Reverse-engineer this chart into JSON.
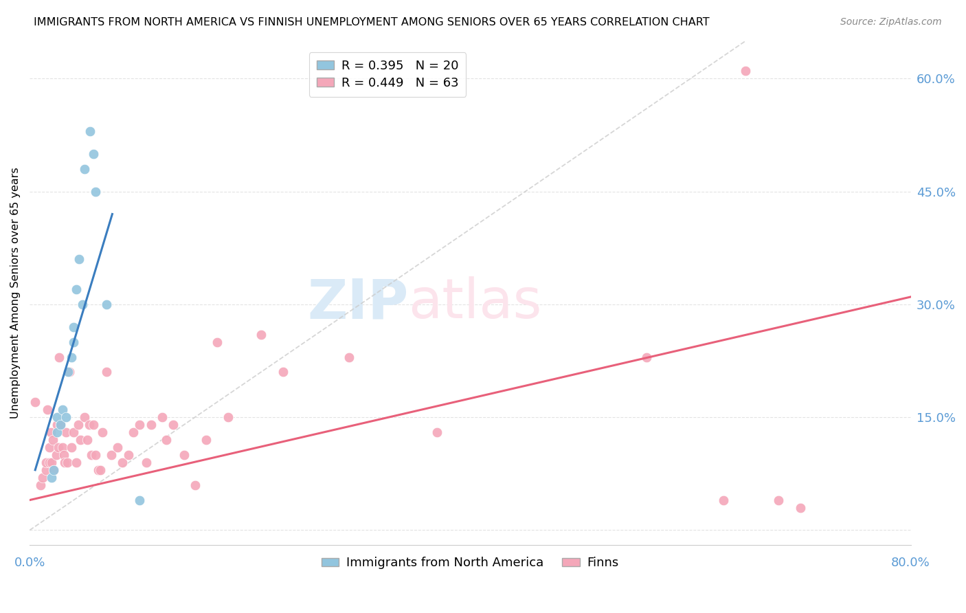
{
  "title": "IMMIGRANTS FROM NORTH AMERICA VS FINNISH UNEMPLOYMENT AMONG SENIORS OVER 65 YEARS CORRELATION CHART",
  "source": "Source: ZipAtlas.com",
  "ylabel": "Unemployment Among Seniors over 65 years",
  "xlim": [
    0.0,
    0.8
  ],
  "ylim": [
    -0.02,
    0.65
  ],
  "color_blue": "#92c5de",
  "color_pink": "#f4a7b9",
  "color_blue_line": "#3a7dbf",
  "color_pink_line": "#e8607a",
  "color_axis_label": "#5b9bd5",
  "watermark_zip_color": "#daeaf7",
  "watermark_atlas_color": "#fce4ec",
  "blue_scatter_x": [
    0.02,
    0.022,
    0.025,
    0.025,
    0.028,
    0.03,
    0.033,
    0.035,
    0.038,
    0.04,
    0.04,
    0.042,
    0.045,
    0.048,
    0.05,
    0.055,
    0.058,
    0.06,
    0.07,
    0.1
  ],
  "blue_scatter_y": [
    0.07,
    0.08,
    0.13,
    0.15,
    0.14,
    0.16,
    0.15,
    0.21,
    0.23,
    0.25,
    0.27,
    0.32,
    0.36,
    0.3,
    0.48,
    0.53,
    0.5,
    0.45,
    0.3,
    0.04
  ],
  "pink_scatter_x": [
    0.005,
    0.01,
    0.012,
    0.015,
    0.015,
    0.016,
    0.018,
    0.018,
    0.019,
    0.02,
    0.021,
    0.022,
    0.024,
    0.025,
    0.026,
    0.027,
    0.028,
    0.03,
    0.031,
    0.032,
    0.033,
    0.034,
    0.036,
    0.038,
    0.04,
    0.042,
    0.044,
    0.046,
    0.05,
    0.052,
    0.054,
    0.056,
    0.058,
    0.06,
    0.062,
    0.064,
    0.066,
    0.07,
    0.074,
    0.08,
    0.084,
    0.09,
    0.094,
    0.1,
    0.106,
    0.11,
    0.12,
    0.124,
    0.13,
    0.14,
    0.15,
    0.16,
    0.17,
    0.18,
    0.21,
    0.23,
    0.29,
    0.37,
    0.56,
    0.63,
    0.65,
    0.68,
    0.7
  ],
  "pink_scatter_y": [
    0.17,
    0.06,
    0.07,
    0.08,
    0.09,
    0.16,
    0.09,
    0.11,
    0.13,
    0.09,
    0.12,
    0.08,
    0.1,
    0.14,
    0.11,
    0.23,
    0.14,
    0.11,
    0.1,
    0.09,
    0.13,
    0.09,
    0.21,
    0.11,
    0.13,
    0.09,
    0.14,
    0.12,
    0.15,
    0.12,
    0.14,
    0.1,
    0.14,
    0.1,
    0.08,
    0.08,
    0.13,
    0.21,
    0.1,
    0.11,
    0.09,
    0.1,
    0.13,
    0.14,
    0.09,
    0.14,
    0.15,
    0.12,
    0.14,
    0.1,
    0.06,
    0.12,
    0.25,
    0.15,
    0.26,
    0.21,
    0.23,
    0.13,
    0.23,
    0.04,
    0.61,
    0.04,
    0.03
  ],
  "blue_line_x0": 0.005,
  "blue_line_x1": 0.075,
  "blue_line_y0": 0.08,
  "blue_line_y1": 0.42,
  "pink_line_x0": 0.0,
  "pink_line_x1": 0.8,
  "pink_line_y0": 0.04,
  "pink_line_y1": 0.31,
  "diag_line_x0": 0.0,
  "diag_line_x1": 0.65,
  "diag_line_y0": 0.0,
  "diag_line_y1": 0.65
}
